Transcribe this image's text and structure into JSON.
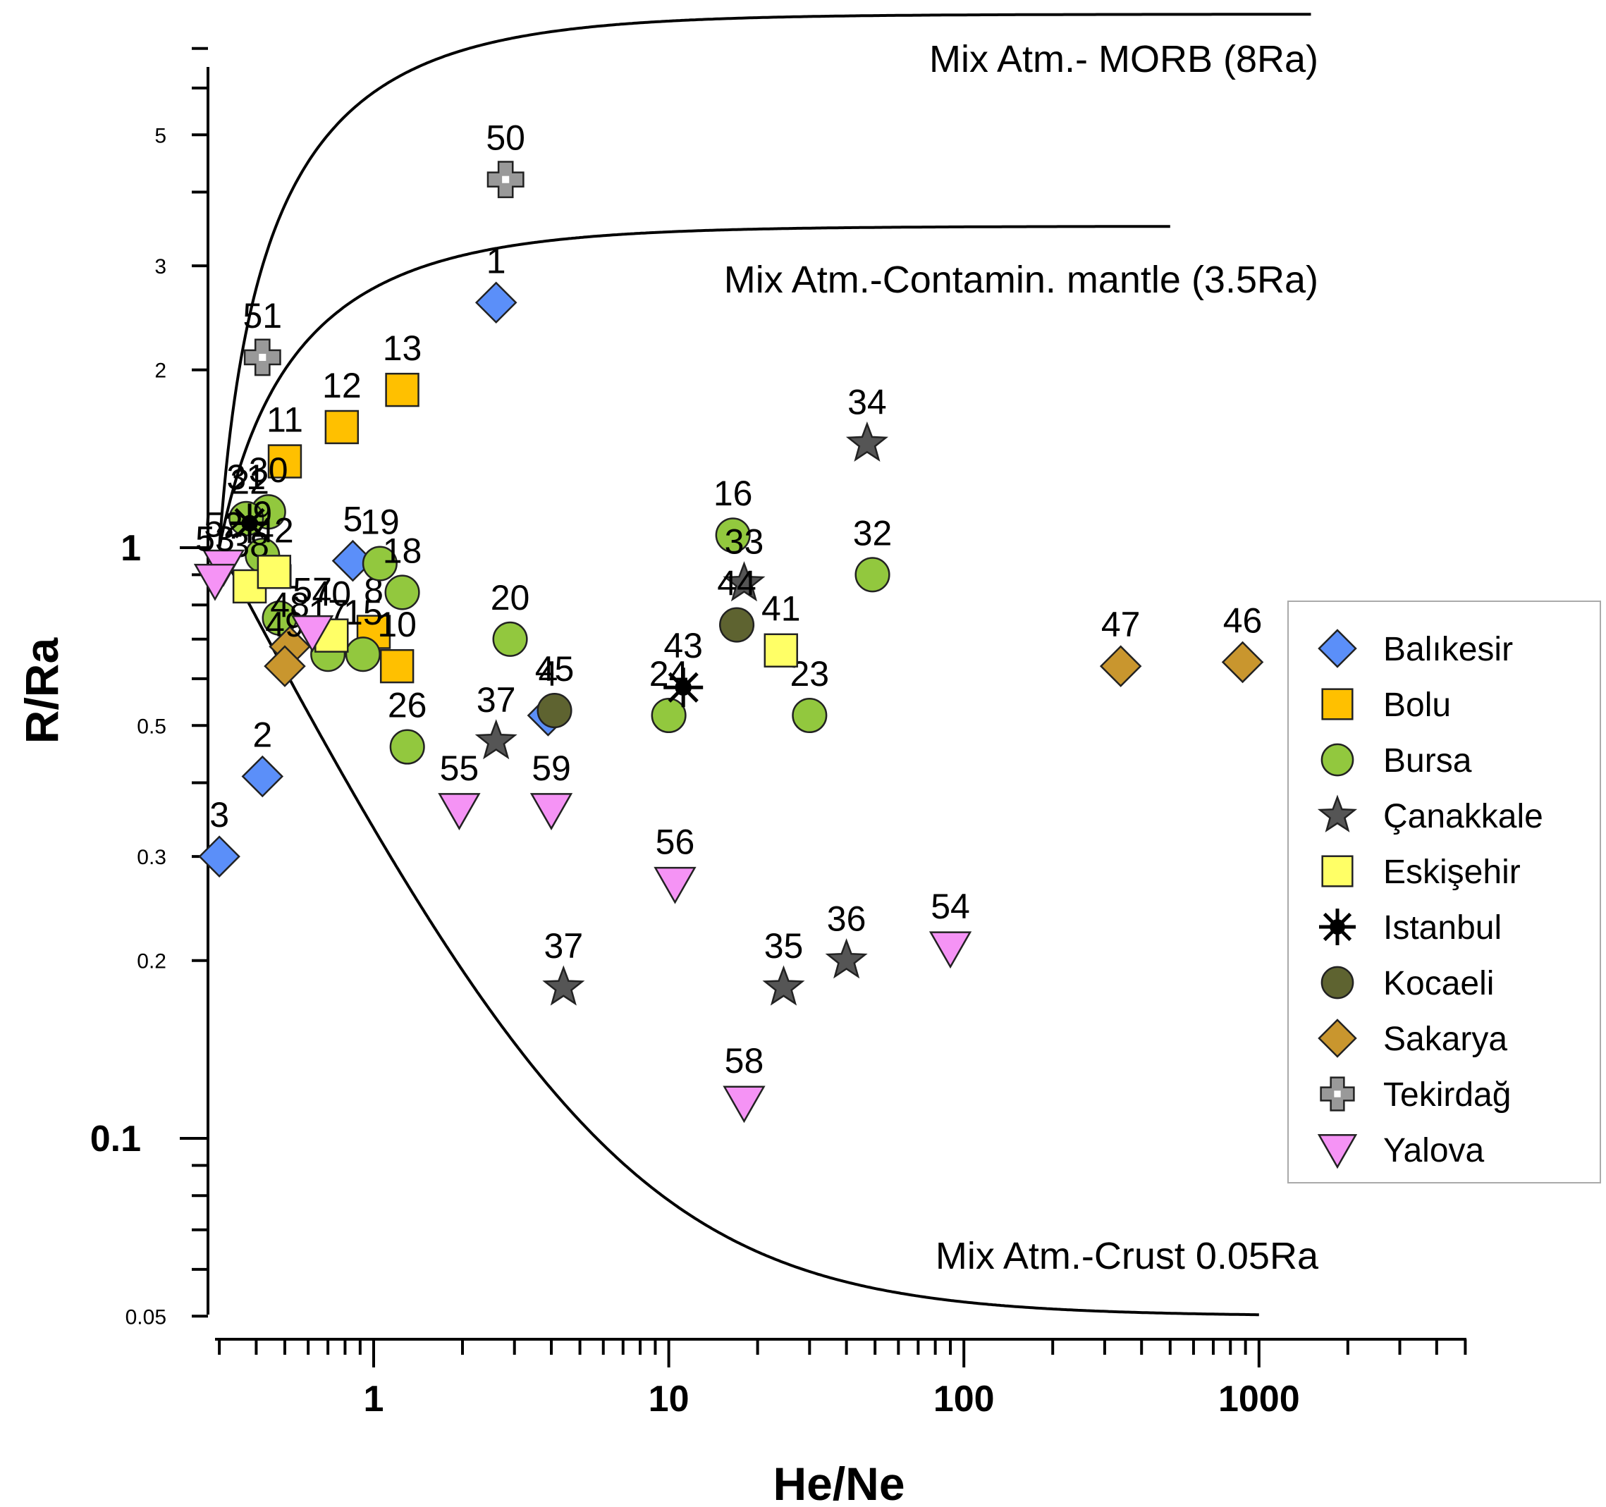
{
  "chart_data": {
    "type": "scatter",
    "xlabel": "He/Ne",
    "ylabel": "R/Ra",
    "xscale": "log",
    "yscale": "log",
    "xlim": [
      0.28,
      5000
    ],
    "ylim": [
      0.05,
      7.5
    ],
    "x_ticks": [
      "1",
      "10",
      "100",
      "1000"
    ],
    "y_ticks_major": [
      "1",
      "0.1"
    ],
    "y_ticks_minor": [
      "5",
      "3",
      "2",
      "0.5",
      "0.3",
      "0.2",
      "0.05"
    ],
    "legend_position": "right",
    "curves": [
      {
        "name": "Mix Atm.- MORB (8Ra)",
        "end_ra": 8,
        "xmax": 1500
      },
      {
        "name": "Mix Atm.-Contamin. mantle (3.5Ra)",
        "end_ra": 3.5,
        "xmax": 500
      },
      {
        "name": "Mix Atm.-Crust 0.05Ra",
        "end_ra": 0.05,
        "xmax": 1000
      }
    ],
    "series": [
      {
        "name": "Balıkesir",
        "marker": "diamond",
        "color": "#5b8ff9",
        "points": [
          {
            "id": "1",
            "x": 2.6,
            "y": 2.6
          },
          {
            "id": "2",
            "x": 0.42,
            "y": 0.41
          },
          {
            "id": "3",
            "x": 0.3,
            "y": 0.3
          },
          {
            "id": "5",
            "x": 0.85,
            "y": 0.95
          },
          {
            "id": "4",
            "x": 3.9,
            "y": 0.52
          }
        ]
      },
      {
        "name": "Bolu",
        "marker": "square",
        "color": "#ffc000",
        "points": [
          {
            "id": "11",
            "x": 0.5,
            "y": 1.4
          },
          {
            "id": "12",
            "x": 0.78,
            "y": 1.6
          },
          {
            "id": "13",
            "x": 1.25,
            "y": 1.85
          },
          {
            "id": "8",
            "x": 1.0,
            "y": 0.72
          },
          {
            "id": "10",
            "x": 1.2,
            "y": 0.63
          }
        ]
      },
      {
        "name": "Bursa",
        "marker": "circle",
        "color": "#92c83e",
        "points": [
          {
            "id": "30",
            "x": 0.44,
            "y": 1.15
          },
          {
            "id": "31",
            "x": 0.37,
            "y": 1.12
          },
          {
            "id": "9",
            "x": 0.42,
            "y": 0.97
          },
          {
            "id": "19",
            "x": 1.05,
            "y": 0.94
          },
          {
            "id": "18",
            "x": 1.25,
            "y": 0.84
          },
          {
            "id": "20",
            "x": 2.9,
            "y": 0.7
          },
          {
            "id": "26",
            "x": 1.3,
            "y": 0.46
          },
          {
            "id": "17",
            "x": 0.7,
            "y": 0.66
          },
          {
            "id": "15",
            "x": 0.92,
            "y": 0.66
          },
          {
            "id": "16",
            "x": 16.5,
            "y": 1.05
          },
          {
            "id": "32",
            "x": 49,
            "y": 0.9
          },
          {
            "id": "24",
            "x": 10,
            "y": 0.52
          },
          {
            "id": "23",
            "x": 30,
            "y": 0.52
          },
          {
            "id": "21",
            "x": 0.48,
            "y": 0.76
          }
        ]
      },
      {
        "name": "Çanakkale",
        "marker": "star",
        "color": "#555555",
        "points": [
          {
            "id": "34",
            "x": 47,
            "y": 1.5
          },
          {
            "id": "33",
            "x": 18,
            "y": 0.87
          },
          {
            "id": "37",
            "x": 2.6,
            "y": 0.47
          },
          {
            "id": "37",
            "x": 4.4,
            "y": 0.18
          },
          {
            "id": "35",
            "x": 24.5,
            "y": 0.18
          },
          {
            "id": "36",
            "x": 40,
            "y": 0.2
          }
        ]
      },
      {
        "name": "Eskişehir",
        "marker": "square",
        "color": "#ffff66",
        "points": [
          {
            "id": "40",
            "x": 0.72,
            "y": 0.71
          },
          {
            "id": "38",
            "x": 0.38,
            "y": 0.86
          },
          {
            "id": "42",
            "x": 0.46,
            "y": 0.91
          },
          {
            "id": "41",
            "x": 24,
            "y": 0.67
          }
        ]
      },
      {
        "name": "Istanbul",
        "marker": "asterisk",
        "color": "#000000",
        "points": [
          {
            "id": "43",
            "x": 11.2,
            "y": 0.58
          },
          {
            "id": "22",
            "x": 0.38,
            "y": 1.1
          }
        ]
      },
      {
        "name": "Kocaeli",
        "marker": "circle",
        "color": "#5e6330",
        "points": [
          {
            "id": "44",
            "x": 17,
            "y": 0.74
          },
          {
            "id": "45",
            "x": 4.1,
            "y": 0.53
          }
        ]
      },
      {
        "name": "Sakarya",
        "marker": "diamond",
        "color": "#c9962e",
        "points": [
          {
            "id": "47",
            "x": 340,
            "y": 0.63
          },
          {
            "id": "46",
            "x": 880,
            "y": 0.64
          },
          {
            "id": "48",
            "x": 0.52,
            "y": 0.68
          },
          {
            "id": "49",
            "x": 0.5,
            "y": 0.63
          }
        ]
      },
      {
        "name": "Tekirdağ",
        "marker": "cross",
        "color": "#999999",
        "points": [
          {
            "id": "50",
            "x": 2.8,
            "y": 4.2
          },
          {
            "id": "51",
            "x": 0.42,
            "y": 2.1
          }
        ]
      },
      {
        "name": "Yalova",
        "marker": "triangle-down",
        "color": "#f593f5",
        "points": [
          {
            "id": "52",
            "x": 0.31,
            "y": 0.93
          },
          {
            "id": "53",
            "x": 0.29,
            "y": 0.88
          },
          {
            "id": "57",
            "x": 0.62,
            "y": 0.72
          },
          {
            "id": "55",
            "x": 1.95,
            "y": 0.36
          },
          {
            "id": "59",
            "x": 4,
            "y": 0.36
          },
          {
            "id": "56",
            "x": 10.5,
            "y": 0.27
          },
          {
            "id": "58",
            "x": 18,
            "y": 0.115
          },
          {
            "id": "54",
            "x": 90,
            "y": 0.21
          }
        ]
      }
    ]
  }
}
